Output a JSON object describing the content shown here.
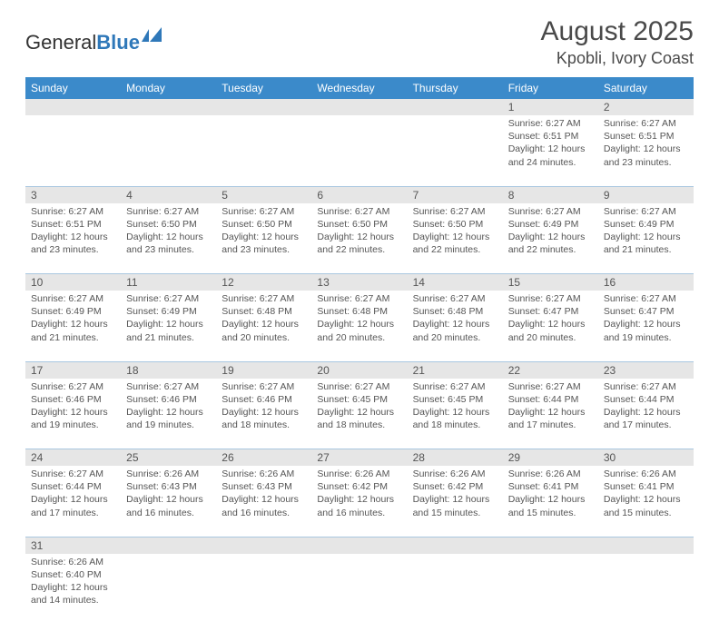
{
  "logo": {
    "text1": "General",
    "text2": "Blue"
  },
  "title": "August 2025",
  "location": "Kpobli, Ivory Coast",
  "headers": [
    "Sunday",
    "Monday",
    "Tuesday",
    "Wednesday",
    "Thursday",
    "Friday",
    "Saturday"
  ],
  "colors": {
    "header_bg": "#3b8aca",
    "header_text": "#ffffff",
    "daynum_bg": "#e6e6e6",
    "row_border": "#a9c7e0"
  },
  "weeks": [
    [
      null,
      null,
      null,
      null,
      null,
      {
        "n": "1",
        "sr": "Sunrise: 6:27 AM",
        "ss": "Sunset: 6:51 PM",
        "dl1": "Daylight: 12 hours",
        "dl2": "and 24 minutes."
      },
      {
        "n": "2",
        "sr": "Sunrise: 6:27 AM",
        "ss": "Sunset: 6:51 PM",
        "dl1": "Daylight: 12 hours",
        "dl2": "and 23 minutes."
      }
    ],
    [
      {
        "n": "3",
        "sr": "Sunrise: 6:27 AM",
        "ss": "Sunset: 6:51 PM",
        "dl1": "Daylight: 12 hours",
        "dl2": "and 23 minutes."
      },
      {
        "n": "4",
        "sr": "Sunrise: 6:27 AM",
        "ss": "Sunset: 6:50 PM",
        "dl1": "Daylight: 12 hours",
        "dl2": "and 23 minutes."
      },
      {
        "n": "5",
        "sr": "Sunrise: 6:27 AM",
        "ss": "Sunset: 6:50 PM",
        "dl1": "Daylight: 12 hours",
        "dl2": "and 23 minutes."
      },
      {
        "n": "6",
        "sr": "Sunrise: 6:27 AM",
        "ss": "Sunset: 6:50 PM",
        "dl1": "Daylight: 12 hours",
        "dl2": "and 22 minutes."
      },
      {
        "n": "7",
        "sr": "Sunrise: 6:27 AM",
        "ss": "Sunset: 6:50 PM",
        "dl1": "Daylight: 12 hours",
        "dl2": "and 22 minutes."
      },
      {
        "n": "8",
        "sr": "Sunrise: 6:27 AM",
        "ss": "Sunset: 6:49 PM",
        "dl1": "Daylight: 12 hours",
        "dl2": "and 22 minutes."
      },
      {
        "n": "9",
        "sr": "Sunrise: 6:27 AM",
        "ss": "Sunset: 6:49 PM",
        "dl1": "Daylight: 12 hours",
        "dl2": "and 21 minutes."
      }
    ],
    [
      {
        "n": "10",
        "sr": "Sunrise: 6:27 AM",
        "ss": "Sunset: 6:49 PM",
        "dl1": "Daylight: 12 hours",
        "dl2": "and 21 minutes."
      },
      {
        "n": "11",
        "sr": "Sunrise: 6:27 AM",
        "ss": "Sunset: 6:49 PM",
        "dl1": "Daylight: 12 hours",
        "dl2": "and 21 minutes."
      },
      {
        "n": "12",
        "sr": "Sunrise: 6:27 AM",
        "ss": "Sunset: 6:48 PM",
        "dl1": "Daylight: 12 hours",
        "dl2": "and 20 minutes."
      },
      {
        "n": "13",
        "sr": "Sunrise: 6:27 AM",
        "ss": "Sunset: 6:48 PM",
        "dl1": "Daylight: 12 hours",
        "dl2": "and 20 minutes."
      },
      {
        "n": "14",
        "sr": "Sunrise: 6:27 AM",
        "ss": "Sunset: 6:48 PM",
        "dl1": "Daylight: 12 hours",
        "dl2": "and 20 minutes."
      },
      {
        "n": "15",
        "sr": "Sunrise: 6:27 AM",
        "ss": "Sunset: 6:47 PM",
        "dl1": "Daylight: 12 hours",
        "dl2": "and 20 minutes."
      },
      {
        "n": "16",
        "sr": "Sunrise: 6:27 AM",
        "ss": "Sunset: 6:47 PM",
        "dl1": "Daylight: 12 hours",
        "dl2": "and 19 minutes."
      }
    ],
    [
      {
        "n": "17",
        "sr": "Sunrise: 6:27 AM",
        "ss": "Sunset: 6:46 PM",
        "dl1": "Daylight: 12 hours",
        "dl2": "and 19 minutes."
      },
      {
        "n": "18",
        "sr": "Sunrise: 6:27 AM",
        "ss": "Sunset: 6:46 PM",
        "dl1": "Daylight: 12 hours",
        "dl2": "and 19 minutes."
      },
      {
        "n": "19",
        "sr": "Sunrise: 6:27 AM",
        "ss": "Sunset: 6:46 PM",
        "dl1": "Daylight: 12 hours",
        "dl2": "and 18 minutes."
      },
      {
        "n": "20",
        "sr": "Sunrise: 6:27 AM",
        "ss": "Sunset: 6:45 PM",
        "dl1": "Daylight: 12 hours",
        "dl2": "and 18 minutes."
      },
      {
        "n": "21",
        "sr": "Sunrise: 6:27 AM",
        "ss": "Sunset: 6:45 PM",
        "dl1": "Daylight: 12 hours",
        "dl2": "and 18 minutes."
      },
      {
        "n": "22",
        "sr": "Sunrise: 6:27 AM",
        "ss": "Sunset: 6:44 PM",
        "dl1": "Daylight: 12 hours",
        "dl2": "and 17 minutes."
      },
      {
        "n": "23",
        "sr": "Sunrise: 6:27 AM",
        "ss": "Sunset: 6:44 PM",
        "dl1": "Daylight: 12 hours",
        "dl2": "and 17 minutes."
      }
    ],
    [
      {
        "n": "24",
        "sr": "Sunrise: 6:27 AM",
        "ss": "Sunset: 6:44 PM",
        "dl1": "Daylight: 12 hours",
        "dl2": "and 17 minutes."
      },
      {
        "n": "25",
        "sr": "Sunrise: 6:26 AM",
        "ss": "Sunset: 6:43 PM",
        "dl1": "Daylight: 12 hours",
        "dl2": "and 16 minutes."
      },
      {
        "n": "26",
        "sr": "Sunrise: 6:26 AM",
        "ss": "Sunset: 6:43 PM",
        "dl1": "Daylight: 12 hours",
        "dl2": "and 16 minutes."
      },
      {
        "n": "27",
        "sr": "Sunrise: 6:26 AM",
        "ss": "Sunset: 6:42 PM",
        "dl1": "Daylight: 12 hours",
        "dl2": "and 16 minutes."
      },
      {
        "n": "28",
        "sr": "Sunrise: 6:26 AM",
        "ss": "Sunset: 6:42 PM",
        "dl1": "Daylight: 12 hours",
        "dl2": "and 15 minutes."
      },
      {
        "n": "29",
        "sr": "Sunrise: 6:26 AM",
        "ss": "Sunset: 6:41 PM",
        "dl1": "Daylight: 12 hours",
        "dl2": "and 15 minutes."
      },
      {
        "n": "30",
        "sr": "Sunrise: 6:26 AM",
        "ss": "Sunset: 6:41 PM",
        "dl1": "Daylight: 12 hours",
        "dl2": "and 15 minutes."
      }
    ],
    [
      {
        "n": "31",
        "sr": "Sunrise: 6:26 AM",
        "ss": "Sunset: 6:40 PM",
        "dl1": "Daylight: 12 hours",
        "dl2": "and 14 minutes."
      },
      null,
      null,
      null,
      null,
      null,
      null
    ]
  ]
}
